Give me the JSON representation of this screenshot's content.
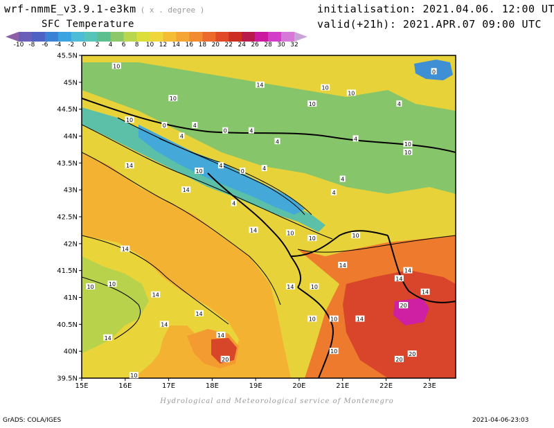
{
  "header": {
    "model": "wrf-nmmE_v3.9.1-e3km",
    "units": "( x . degree )",
    "variable": "SFC Temperature",
    "initialisation": "initialisation: 2021.04.06. 12:00 UTC",
    "valid": "valid(+21h): 2021.APR.07 09:00 UTC"
  },
  "colorbar": {
    "labels": [
      "-10",
      "-8",
      "-6",
      "-4",
      "-2",
      "0",
      "2",
      "4",
      "6",
      "8",
      "10",
      "12",
      "14",
      "16",
      "18",
      "20",
      "22",
      "24",
      "26",
      "28",
      "30",
      "32"
    ],
    "colors": [
      "#8c5fa6",
      "#6a5fb8",
      "#4e62c4",
      "#3b82d6",
      "#3aa3e0",
      "#4cbcd8",
      "#56c4b8",
      "#5ebf8e",
      "#8cc86a",
      "#b8d74e",
      "#dcde3c",
      "#f0d63a",
      "#f4bd34",
      "#f5a533",
      "#f28a30",
      "#ec6b2c",
      "#e04a26",
      "#cc2e22",
      "#b81a4c",
      "#cc1aa0",
      "#d23ec8",
      "#d777d8",
      "#c9a4d8"
    ]
  },
  "map": {
    "lat_labels": [
      "45.5N",
      "45N",
      "44.5N",
      "44N",
      "43.5N",
      "43N",
      "42.5N",
      "42N",
      "41.5N",
      "41N",
      "40.5N",
      "40N",
      "39.5N"
    ],
    "lon_labels": [
      "15E",
      "16E",
      "17E",
      "18E",
      "19E",
      "20E",
      "21E",
      "22E",
      "23E"
    ],
    "contour_labels": [
      {
        "text": "10",
        "lon": 15.8,
        "lat": 45.3
      },
      {
        "text": "14",
        "lon": 19.1,
        "lat": 44.95
      },
      {
        "text": "10",
        "lon": 20.6,
        "lat": 44.9
      },
      {
        "text": "10",
        "lon": 21.2,
        "lat": 44.8
      },
      {
        "text": "0",
        "lon": 23.1,
        "lat": 45.2
      },
      {
        "text": "10",
        "lon": 17.1,
        "lat": 44.7
      },
      {
        "text": "10",
        "lon": 20.3,
        "lat": 44.6
      },
      {
        "text": "4",
        "lon": 22.3,
        "lat": 44.6
      },
      {
        "text": "10",
        "lon": 16.1,
        "lat": 44.3
      },
      {
        "text": "0",
        "lon": 16.9,
        "lat": 44.2
      },
      {
        "text": "4",
        "lon": 17.6,
        "lat": 44.2
      },
      {
        "text": "4",
        "lon": 17.3,
        "lat": 44.0
      },
      {
        "text": "0",
        "lon": 18.3,
        "lat": 44.1
      },
      {
        "text": "4",
        "lon": 18.9,
        "lat": 44.1
      },
      {
        "text": "4",
        "lon": 19.5,
        "lat": 43.9
      },
      {
        "text": "4",
        "lon": 21.3,
        "lat": 43.95
      },
      {
        "text": "10",
        "lon": 22.5,
        "lat": 43.85
      },
      {
        "text": "14",
        "lon": 16.1,
        "lat": 43.45
      },
      {
        "text": "10",
        "lon": 17.7,
        "lat": 43.35
      },
      {
        "text": "4",
        "lon": 18.2,
        "lat": 43.45
      },
      {
        "text": "0",
        "lon": 18.7,
        "lat": 43.35
      },
      {
        "text": "4",
        "lon": 19.2,
        "lat": 43.4
      },
      {
        "text": "10",
        "lon": 22.5,
        "lat": 43.7
      },
      {
        "text": "4",
        "lon": 21.0,
        "lat": 43.2
      },
      {
        "text": "14",
        "lon": 17.4,
        "lat": 43.0
      },
      {
        "text": "4",
        "lon": 20.8,
        "lat": 42.95
      },
      {
        "text": "4",
        "lon": 18.5,
        "lat": 42.75
      },
      {
        "text": "14",
        "lon": 18.95,
        "lat": 42.25
      },
      {
        "text": "10",
        "lon": 19.8,
        "lat": 42.2
      },
      {
        "text": "10",
        "lon": 20.3,
        "lat": 42.1
      },
      {
        "text": "10",
        "lon": 21.3,
        "lat": 42.15
      },
      {
        "text": "14",
        "lon": 16.0,
        "lat": 41.9
      },
      {
        "text": "14",
        "lon": 21.0,
        "lat": 41.6
      },
      {
        "text": "14",
        "lon": 22.5,
        "lat": 41.5
      },
      {
        "text": "10",
        "lon": 15.2,
        "lat": 41.2
      },
      {
        "text": "10",
        "lon": 15.7,
        "lat": 41.25
      },
      {
        "text": "14",
        "lon": 19.8,
        "lat": 41.2
      },
      {
        "text": "10",
        "lon": 20.35,
        "lat": 41.2
      },
      {
        "text": "14",
        "lon": 22.3,
        "lat": 41.35
      },
      {
        "text": "14",
        "lon": 22.9,
        "lat": 41.1
      },
      {
        "text": "14",
        "lon": 16.7,
        "lat": 41.05
      },
      {
        "text": "14",
        "lon": 17.7,
        "lat": 40.7
      },
      {
        "text": "20",
        "lon": 22.4,
        "lat": 40.85
      },
      {
        "text": "10",
        "lon": 20.3,
        "lat": 40.6
      },
      {
        "text": "10",
        "lon": 20.8,
        "lat": 40.6
      },
      {
        "text": "14",
        "lon": 21.4,
        "lat": 40.6
      },
      {
        "text": "14",
        "lon": 16.9,
        "lat": 40.5
      },
      {
        "text": "14",
        "lon": 15.6,
        "lat": 40.25
      },
      {
        "text": "14",
        "lon": 18.2,
        "lat": 40.3
      },
      {
        "text": "20",
        "lon": 18.3,
        "lat": 39.85
      },
      {
        "text": "10",
        "lon": 20.8,
        "lat": 40.0
      },
      {
        "text": "20",
        "lon": 22.6,
        "lat": 39.95
      },
      {
        "text": "20",
        "lon": 22.3,
        "lat": 39.85
      },
      {
        "text": "10",
        "lon": 16.2,
        "lat": 39.55
      }
    ]
  },
  "footer": {
    "credit": "Hydrological and Meteorological service of Montenegro",
    "grads": "GrADS: COLA/IGES",
    "timestamp": "2021-04-06-23:03"
  }
}
